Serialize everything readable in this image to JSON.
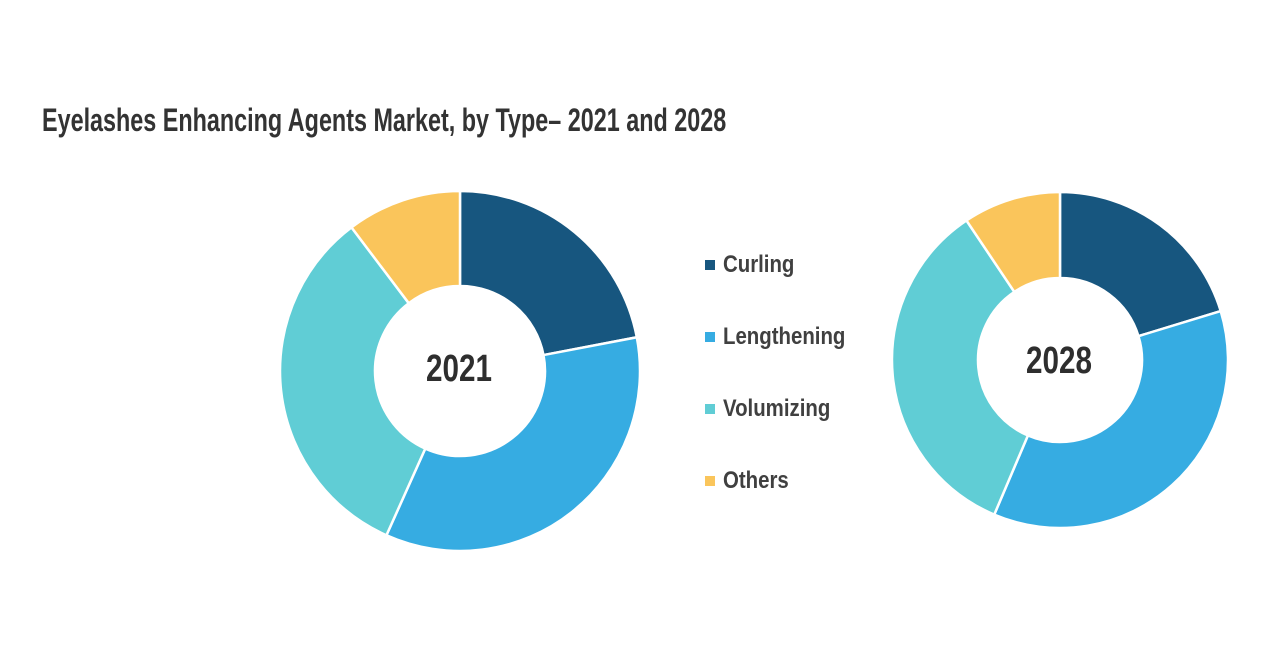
{
  "title": "Eyelashes Enhancing Agents Market, by Type– 2021 and 2028",
  "colors": {
    "curling": "#17567F",
    "lengthening": "#36ACE2",
    "volumizing": "#60CDD5",
    "others": "#FAC55B",
    "title_text": "#333333",
    "legend_text": "#404040",
    "center_label_text": "#2E2E2E",
    "separator": "#FFFFFF"
  },
  "legend": {
    "items": [
      {
        "label": "Curling",
        "color_key": "curling"
      },
      {
        "label": "Lengthening",
        "color_key": "lengthening"
      },
      {
        "label": "Volumizing",
        "color_key": "volumizing"
      },
      {
        "label": "Others",
        "color_key": "others"
      }
    ]
  },
  "chart_data": [
    {
      "type": "pie",
      "subtype": "donut",
      "center_label": "2021",
      "categories": [
        "Curling",
        "Lengthening",
        "Volumizing",
        "Others"
      ],
      "values": [
        22.0,
        34.7,
        33.0,
        10.3
      ],
      "color_keys": [
        "curling",
        "lengthening",
        "volumizing",
        "others"
      ],
      "start_angle_deg": 0,
      "direction": "clockwise",
      "values_unit": "% share (estimated from arc angles)"
    },
    {
      "type": "pie",
      "subtype": "donut",
      "center_label": "2028",
      "categories": [
        "Curling",
        "Lengthening",
        "Volumizing",
        "Others"
      ],
      "values": [
        20.3,
        36.1,
        34.2,
        9.4
      ],
      "color_keys": [
        "curling",
        "lengthening",
        "volumizing",
        "others"
      ],
      "start_angle_deg": 0,
      "direction": "clockwise",
      "values_unit": "% share (estimated from arc angles)"
    }
  ]
}
